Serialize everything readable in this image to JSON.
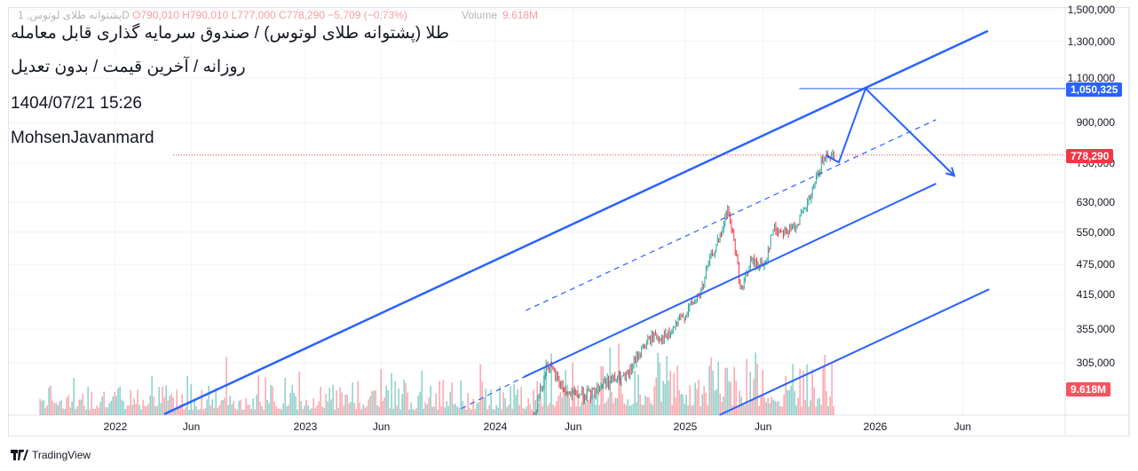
{
  "legend": {
    "symbol": "پشتوانه طلای لوتوس, 1D",
    "open": "O790,010",
    "high": "H790,010",
    "low": "L777,000",
    "close": "C778,290",
    "change": "−5,709 (−0.73%)",
    "volume_label": "Volume",
    "volume_value": "9.618M"
  },
  "titles": {
    "line1": "طلا (پشتوانه طلای لوتوس) / صندوق سرمایه گذاری قابل معامله",
    "line2": "روزانه / آخرین قیمت / بدون تعدیل",
    "line3": "1404/07/21 15:26",
    "line4": "MohsenJavanmard"
  },
  "badges": {
    "target": "1,050,325",
    "last_price": "778,290",
    "volume": "9.618M"
  },
  "colors": {
    "up": "#26a69a",
    "down": "#f23645",
    "drawing": "#2962ff",
    "target_badge": "#2962ff",
    "last_badge": "#f23645"
  },
  "branding": "TradingView",
  "chart_data": {
    "type": "candlestick",
    "scale": "log",
    "price_ticks": [
      "1,500,000",
      "1,300,000",
      "1,100,000",
      "900,000",
      "750,000",
      "630,000",
      "550,000",
      "475,000",
      "415,000",
      "355,000",
      "305,000"
    ],
    "price_tick_values": [
      1500000,
      1300000,
      1100000,
      900000,
      750000,
      630000,
      550000,
      475000,
      415000,
      355000,
      305000
    ],
    "time_ticks": [
      {
        "label": "2022",
        "t": 2022.0
      },
      {
        "label": "Jun",
        "t": 2022.4
      },
      {
        "label": "2023",
        "t": 2023.0
      },
      {
        "label": "Jun",
        "t": 2023.4
      },
      {
        "label": "2024",
        "t": 2024.0
      },
      {
        "label": "Jun",
        "t": 2024.41
      },
      {
        "label": "2025",
        "t": 2025.0
      },
      {
        "label": "Jun",
        "t": 2025.41
      },
      {
        "label": "2026",
        "t": 2026.0
      },
      {
        "label": "Jun",
        "t": 2026.46
      }
    ],
    "price_path": [
      [
        2024.2,
        241000
      ],
      [
        2024.27,
        303000
      ],
      [
        2024.38,
        264000
      ],
      [
        2024.5,
        264000
      ],
      [
        2024.57,
        280000
      ],
      [
        2024.69,
        285000
      ],
      [
        2024.76,
        322000
      ],
      [
        2024.83,
        345000
      ],
      [
        2024.9,
        341000
      ],
      [
        2024.99,
        378000
      ],
      [
        2025.08,
        419000
      ],
      [
        2025.13,
        491000
      ],
      [
        2025.18,
        535000
      ],
      [
        2025.22,
        610000
      ],
      [
        2025.26,
        512000
      ],
      [
        2025.29,
        419000
      ],
      [
        2025.34,
        481000
      ],
      [
        2025.41,
        472000
      ],
      [
        2025.46,
        556000
      ],
      [
        2025.55,
        552000
      ],
      [
        2025.62,
        598000
      ],
      [
        2025.67,
        662000
      ],
      [
        2025.71,
        746000
      ],
      [
        2025.75,
        787000
      ],
      [
        2025.78,
        778290
      ]
    ],
    "volume_range": [
      2021.6,
      2025.78
    ],
    "last_volume_millions": 9.618,
    "last_price": 778290,
    "drawings": {
      "upper_channel": [
        [
          2022.257,
          242000
        ],
        [
          2026.593,
          1362000
        ]
      ],
      "lower_channel_dashed": [
        [
          2023.82,
          248000
        ],
        [
          2024.15,
          286000
        ]
      ],
      "lower_channel": [
        [
          2024.15,
          286000
        ],
        [
          2026.32,
          684000
        ]
      ],
      "mid_channel_dashed": [
        [
          2024.16,
          386000
        ],
        [
          2026.32,
          913000
        ]
      ],
      "bottom_channel": [
        [
          2025.18,
          241000
        ],
        [
          2026.6,
          425000
        ]
      ],
      "target_line": {
        "price": 1050325,
        "from": 2025.6
      },
      "projection_path": [
        [
          2025.738,
          778000
        ],
        [
          2025.808,
          753000
        ],
        [
          2025.949,
          1050325
        ],
        [
          2026.416,
          709000
        ]
      ]
    }
  }
}
